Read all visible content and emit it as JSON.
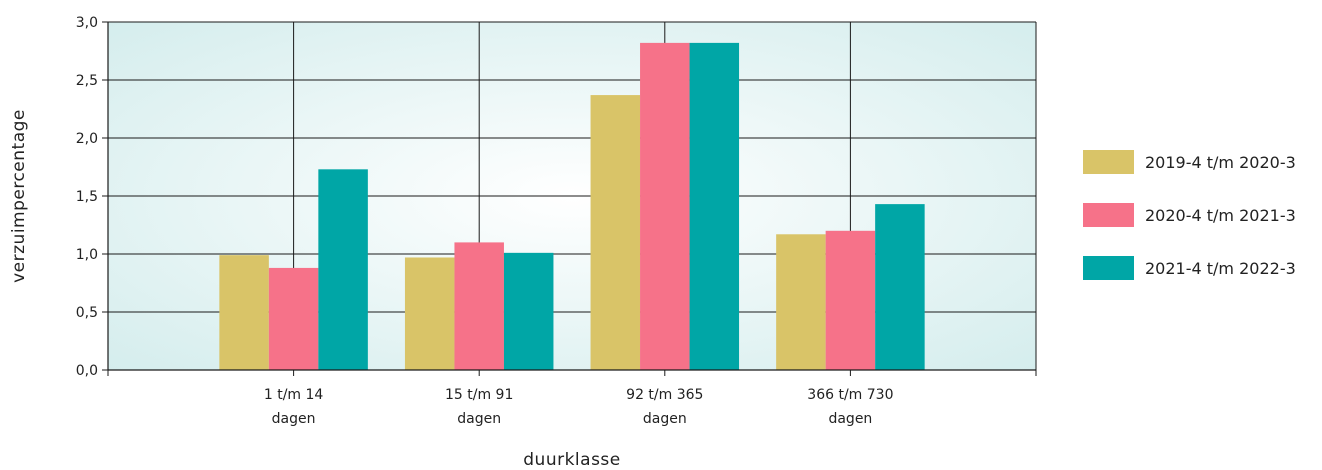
{
  "chart_data": {
    "type": "bar",
    "categories": [
      [
        "1 t/m 14",
        "dagen"
      ],
      [
        "15 t/m 91",
        "dagen"
      ],
      [
        "92 t/m 365",
        "dagen"
      ],
      [
        "366 t/m 730",
        "dagen"
      ]
    ],
    "series": [
      {
        "name": "2019-4 t/m 2020-3",
        "color": "#d9c468",
        "values": [
          0.99,
          0.97,
          2.37,
          1.17
        ]
      },
      {
        "name": "2020-4 t/m 2021-3",
        "color": "#f67289",
        "values": [
          0.88,
          1.1,
          2.82,
          1.2
        ]
      },
      {
        "name": "2021-4 t/m 2022-3",
        "color": "#00a6a6",
        "values": [
          1.73,
          1.01,
          2.82,
          1.43
        ]
      }
    ],
    "xlabel": "duurklasse",
    "ylabel": "verzuimpercentage",
    "ylim": [
      0,
      3.0
    ],
    "yticks": [
      "0,0",
      "0,5",
      "1,0",
      "1,5",
      "2,0",
      "2,5",
      "3,0"
    ],
    "grid": true,
    "legend_position": "right"
  }
}
